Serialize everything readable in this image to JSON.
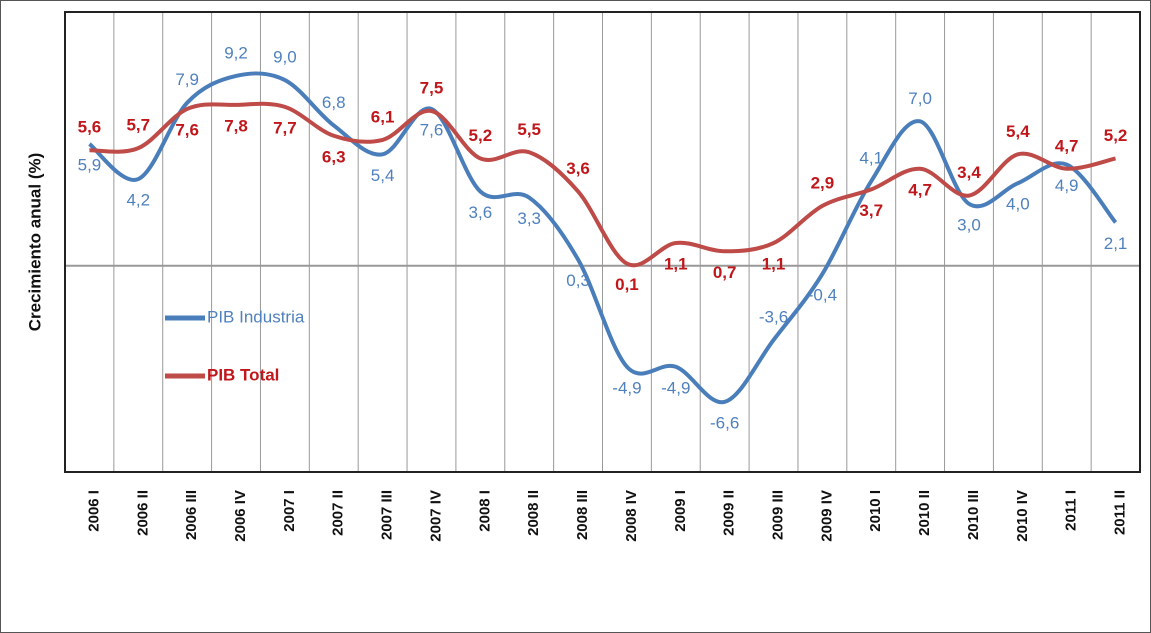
{
  "chart_data": {
    "type": "line",
    "y_label": "Crecimiento anual (%)",
    "categories": [
      "2006 I",
      "2006 II",
      "2006 III",
      "2006 IV",
      "2007 I",
      "2007 II",
      "2007 III",
      "2007 IV",
      "2008 I",
      "2008 II",
      "2008 III",
      "2008 IV",
      "2009 I",
      "2009 II",
      "2009 III",
      "2009 IV",
      "2010 I",
      "2010 II",
      "2010 III",
      "2010 IV",
      "2011 I",
      "2011 II"
    ],
    "series": [
      {
        "name": "PIB Industria",
        "color": "#4a7ebb",
        "values": [
          5.9,
          4.2,
          7.9,
          9.2,
          9.0,
          6.8,
          5.4,
          7.6,
          3.6,
          3.3,
          0.3,
          -4.9,
          -4.9,
          -6.6,
          -3.6,
          -0.4,
          4.1,
          7.0,
          3.0,
          4.0,
          4.9,
          2.1
        ],
        "value_labels": [
          "5,9",
          "4,2",
          "7,9",
          "9,2",
          "9,0",
          "6,8",
          "5,4",
          "7,6",
          "3,6",
          "3,3",
          "0,3",
          "-4,9",
          "-4,9",
          "-6,6",
          "-3,6",
          "-0,4",
          "4,1",
          "7,0",
          "3,0",
          "4,0",
          "4,9",
          "2,1"
        ]
      },
      {
        "name": "PIB Total",
        "color": "#be4b48",
        "values": [
          5.6,
          5.7,
          7.6,
          7.8,
          7.7,
          6.3,
          6.1,
          7.5,
          5.2,
          5.5,
          3.6,
          0.1,
          1.1,
          0.7,
          1.1,
          2.9,
          3.7,
          4.7,
          3.4,
          5.4,
          4.7,
          5.2
        ],
        "value_labels": [
          "5,6",
          "5,7",
          "7,6",
          "7,8",
          "7,7",
          "6,3",
          "6,1",
          "7,5",
          "5,2",
          "5,5",
          "3,6",
          "0,1",
          "1,1",
          "0,7",
          "1,1",
          "2,9",
          "3,7",
          "4,7",
          "3,4",
          "5,4",
          "4,7",
          "5,2"
        ]
      }
    ],
    "ylim": [
      -10,
      12.3
    ],
    "legend": "left"
  }
}
